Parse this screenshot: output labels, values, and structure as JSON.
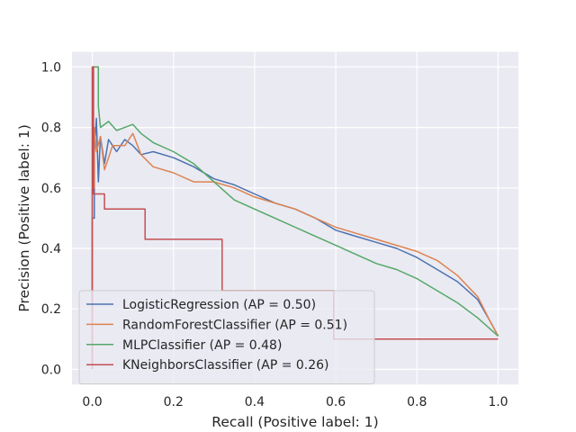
{
  "chart_data": {
    "type": "line",
    "xlabel": "Recall (Positive label: 1)",
    "ylabel": "Precision (Positive label: 1)",
    "xlim": [
      -0.05,
      1.05
    ],
    "ylim": [
      -0.05,
      1.05
    ],
    "xticks": [
      0.0,
      0.2,
      0.4,
      0.6,
      0.8,
      1.0
    ],
    "xtick_labels": [
      "0.0",
      "0.2",
      "0.4",
      "0.6",
      "0.8",
      "1.0"
    ],
    "yticks": [
      0.0,
      0.2,
      0.4,
      0.6,
      0.8,
      1.0
    ],
    "ytick_labels": [
      "0.0",
      "0.2",
      "0.4",
      "0.6",
      "0.8",
      "1.0"
    ],
    "grid": true,
    "legend_position": "lower-left",
    "series": [
      {
        "name": "LogisticRegression (AP = 0.50)",
        "color": "#4c72b0",
        "points": [
          [
            0.0,
            0.0
          ],
          [
            0.0,
            0.5
          ],
          [
            0.005,
            0.5
          ],
          [
            0.005,
            0.72
          ],
          [
            0.01,
            0.83
          ],
          [
            0.015,
            0.62
          ],
          [
            0.02,
            0.77
          ],
          [
            0.03,
            0.68
          ],
          [
            0.04,
            0.76
          ],
          [
            0.06,
            0.72
          ],
          [
            0.08,
            0.76
          ],
          [
            0.1,
            0.74
          ],
          [
            0.12,
            0.71
          ],
          [
            0.15,
            0.72
          ],
          [
            0.2,
            0.7
          ],
          [
            0.25,
            0.67
          ],
          [
            0.3,
            0.63
          ],
          [
            0.35,
            0.61
          ],
          [
            0.4,
            0.58
          ],
          [
            0.45,
            0.55
          ],
          [
            0.5,
            0.53
          ],
          [
            0.55,
            0.5
          ],
          [
            0.6,
            0.46
          ],
          [
            0.65,
            0.44
          ],
          [
            0.7,
            0.42
          ],
          [
            0.75,
            0.4
          ],
          [
            0.8,
            0.37
          ],
          [
            0.85,
            0.33
          ],
          [
            0.9,
            0.29
          ],
          [
            0.95,
            0.23
          ],
          [
            0.98,
            0.16
          ],
          [
            1.0,
            0.11
          ]
        ]
      },
      {
        "name": "RandomForestClassifier (AP = 0.51)",
        "color": "#dd8452",
        "points": [
          [
            0.0,
            0.0
          ],
          [
            0.0,
            0.6
          ],
          [
            0.005,
            0.6
          ],
          [
            0.005,
            0.8
          ],
          [
            0.01,
            0.72
          ],
          [
            0.02,
            0.77
          ],
          [
            0.03,
            0.66
          ],
          [
            0.05,
            0.74
          ],
          [
            0.08,
            0.74
          ],
          [
            0.1,
            0.78
          ],
          [
            0.12,
            0.71
          ],
          [
            0.15,
            0.67
          ],
          [
            0.2,
            0.65
          ],
          [
            0.25,
            0.62
          ],
          [
            0.3,
            0.62
          ],
          [
            0.35,
            0.6
          ],
          [
            0.4,
            0.57
          ],
          [
            0.45,
            0.55
          ],
          [
            0.5,
            0.53
          ],
          [
            0.55,
            0.5
          ],
          [
            0.6,
            0.47
          ],
          [
            0.65,
            0.45
          ],
          [
            0.7,
            0.43
          ],
          [
            0.75,
            0.41
          ],
          [
            0.8,
            0.39
          ],
          [
            0.85,
            0.36
          ],
          [
            0.9,
            0.31
          ],
          [
            0.95,
            0.24
          ],
          [
            0.98,
            0.16
          ],
          [
            1.0,
            0.11
          ]
        ]
      },
      {
        "name": "MLPClassifier (AP = 0.48)",
        "color": "#55a868",
        "points": [
          [
            0.0,
            1.0
          ],
          [
            0.015,
            1.0
          ],
          [
            0.015,
            0.87
          ],
          [
            0.02,
            0.8
          ],
          [
            0.04,
            0.82
          ],
          [
            0.06,
            0.79
          ],
          [
            0.08,
            0.8
          ],
          [
            0.1,
            0.81
          ],
          [
            0.12,
            0.78
          ],
          [
            0.15,
            0.75
          ],
          [
            0.2,
            0.72
          ],
          [
            0.25,
            0.68
          ],
          [
            0.3,
            0.62
          ],
          [
            0.35,
            0.56
          ],
          [
            0.4,
            0.53
          ],
          [
            0.45,
            0.5
          ],
          [
            0.5,
            0.47
          ],
          [
            0.55,
            0.44
          ],
          [
            0.6,
            0.41
          ],
          [
            0.65,
            0.38
          ],
          [
            0.7,
            0.35
          ],
          [
            0.75,
            0.33
          ],
          [
            0.8,
            0.3
          ],
          [
            0.85,
            0.26
          ],
          [
            0.9,
            0.22
          ],
          [
            0.95,
            0.17
          ],
          [
            1.0,
            0.11
          ]
        ]
      },
      {
        "name": "KNeighborsClassifier (AP = 0.26)",
        "color": "#c44e52",
        "points": [
          [
            0.0,
            0.0
          ],
          [
            0.0,
            1.0
          ],
          [
            0.003,
            1.0
          ],
          [
            0.003,
            0.58
          ],
          [
            0.03,
            0.58
          ],
          [
            0.03,
            0.53
          ],
          [
            0.13,
            0.53
          ],
          [
            0.13,
            0.43
          ],
          [
            0.32,
            0.43
          ],
          [
            0.32,
            0.26
          ],
          [
            0.595,
            0.26
          ],
          [
            0.595,
            0.1
          ],
          [
            1.0,
            0.1
          ]
        ]
      }
    ]
  }
}
